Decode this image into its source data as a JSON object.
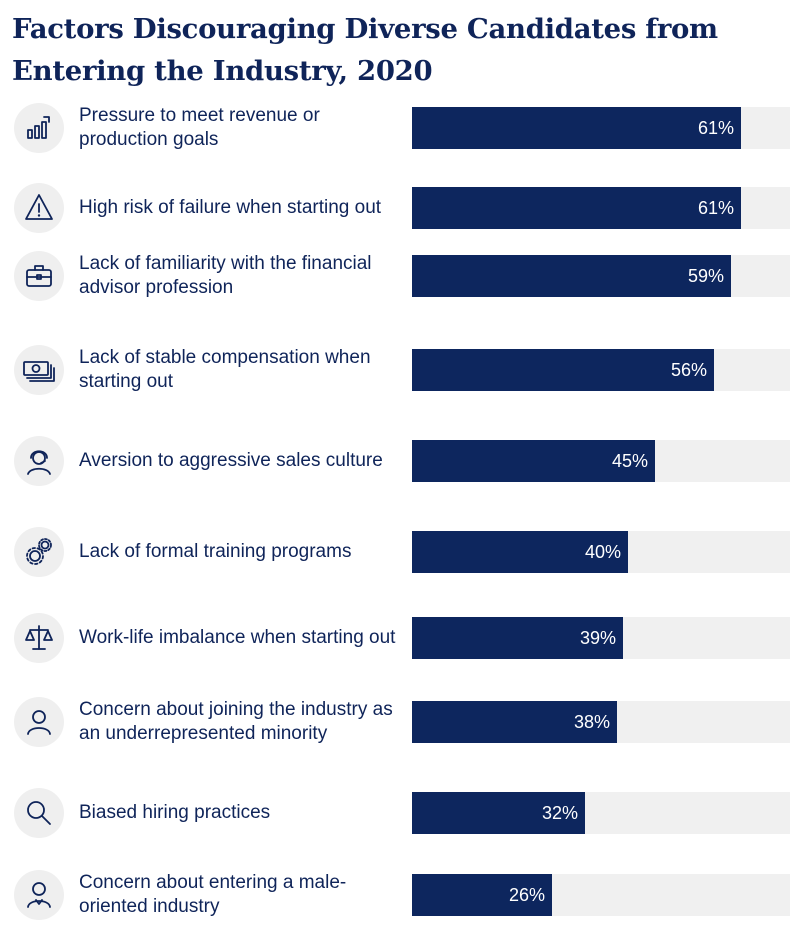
{
  "chart_data": {
    "type": "bar",
    "orientation": "horizontal",
    "title": "Factors Discouraging Diverse Candidates from Entering the Industry, 2020",
    "xlim": [
      0,
      70
    ],
    "grid": false,
    "colors": {
      "bar": "#0d265e",
      "track": "#f0f0f0",
      "text": "#0f2459",
      "icon_bg": "#efefef"
    },
    "categories": [
      "Pressure to meet revenue or production goals",
      "High risk of failure when starting out",
      "Lack of familiarity with the financial advisor profession",
      "Lack of stable compensation when starting out",
      "Aversion to aggressive sales culture",
      "Lack of formal training programs",
      "Work-life imbalance when starting out",
      "Concern about joining the industry as an underrepresented minority",
      "Biased hiring practices",
      "Concern about entering a male-oriented industry"
    ],
    "values": [
      61,
      61,
      59,
      56,
      45,
      40,
      39,
      38,
      32,
      26
    ],
    "value_labels": [
      "61%",
      "61%",
      "59%",
      "56%",
      "45%",
      "40%",
      "39%",
      "38%",
      "32%",
      "26%"
    ],
    "icons": [
      "bar-chart-icon",
      "warning-icon",
      "briefcase-icon",
      "money-icon",
      "headset-person-icon",
      "gears-icon",
      "scale-icon",
      "person-icon",
      "magnifier-icon",
      "businessperson-icon"
    ]
  }
}
